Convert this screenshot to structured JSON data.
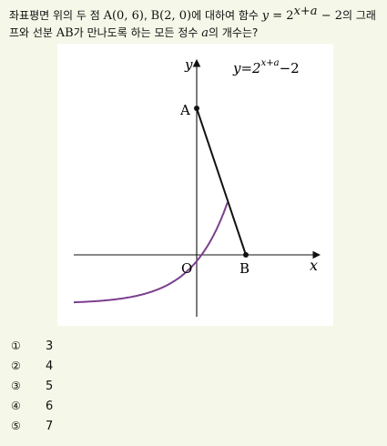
{
  "question": {
    "text_1": "좌표평면 위의 두 점 ",
    "point_a": "A(0, 6)",
    "sep": ", ",
    "point_b": "B(2, 0)",
    "text_2": "에 대하여 함수 ",
    "func_lhs": "y",
    "func_eq": " = 2",
    "func_exp": "x+a",
    "func_tail": " − 2",
    "text_3": "의 그래프와 선분 ",
    "segment": "AB",
    "text_4": "가 만나도록 하는 모든 정수 ",
    "var_a": "a",
    "text_5": "의 개수는?"
  },
  "figure": {
    "y_axis_label": "y",
    "x_axis_label": "x",
    "origin_label": "O",
    "point_a_label": "A",
    "point_b_label": "B",
    "curve_label_lhs": "y=2",
    "curve_label_exp": "x+a",
    "curve_label_tail": "−2",
    "colors": {
      "curve": "#7b3f8f",
      "segment": "#111111",
      "axes": "#111111"
    }
  },
  "choices": [
    {
      "marker": "①",
      "value": "3"
    },
    {
      "marker": "②",
      "value": "4"
    },
    {
      "marker": "③",
      "value": "5"
    },
    {
      "marker": "④",
      "value": "6"
    },
    {
      "marker": "⑤",
      "value": "7"
    }
  ]
}
